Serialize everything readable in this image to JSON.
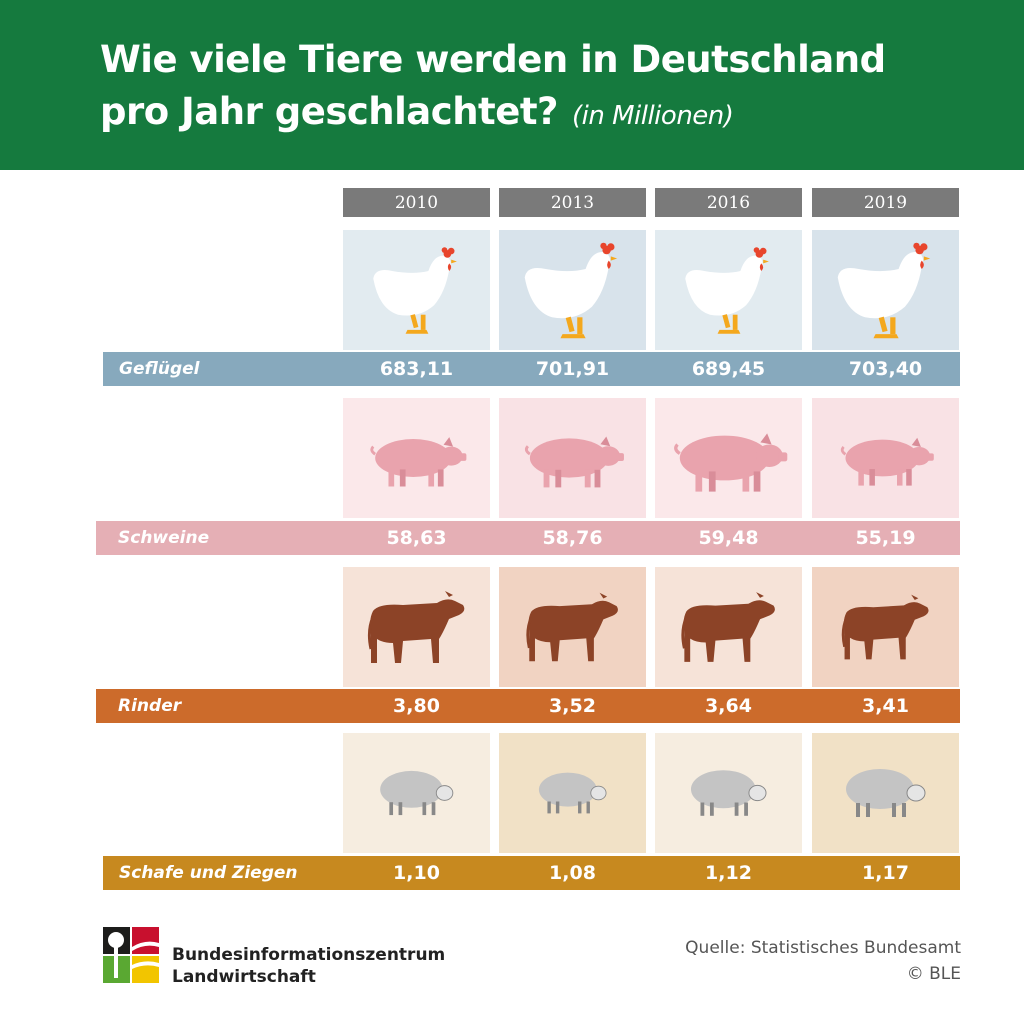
{
  "header": {
    "title_line1": "Wie viele Tiere werden in Deutschland",
    "title_line2": "pro Jahr geschlachtet?",
    "unit": "(in Millionen)"
  },
  "years": [
    "2010",
    "2013",
    "2016",
    "2019"
  ],
  "chart_data": {
    "type": "table",
    "categories": [
      "2010",
      "2013",
      "2016",
      "2019"
    ],
    "series": [
      {
        "name": "Geflügel",
        "values": [
          "683,11",
          "701,91",
          "689,45",
          "703,40"
        ]
      },
      {
        "name": "Schweine",
        "values": [
          "58,63",
          "58,76",
          "59,48",
          "55,19"
        ]
      },
      {
        "name": "Rinder",
        "values": [
          "3,80",
          "3,52",
          "3,64",
          "3,41"
        ]
      },
      {
        "name": "Schafe und Ziegen",
        "values": [
          "1,10",
          "1,08",
          "1,12",
          "1,17"
        ]
      }
    ]
  },
  "colors": {
    "header": "#157a3e",
    "year_bar": "#7a7a7a",
    "gefluegel_band": "#87a9bd",
    "schweine_band": "#e5afb5",
    "rinder_band": "#cc6b2b",
    "schafe_band": "#c7891f"
  },
  "icons": [
    "chicken-icon",
    "pig-icon",
    "cow-icon",
    "sheep-icon",
    "ble-logo-icon"
  ],
  "footer": {
    "org_line1": "Bundesinformationszentrum",
    "org_line2": "Landwirtschaft",
    "source": "Quelle: Statistisches Bundesamt",
    "copyright": "© BLE"
  }
}
